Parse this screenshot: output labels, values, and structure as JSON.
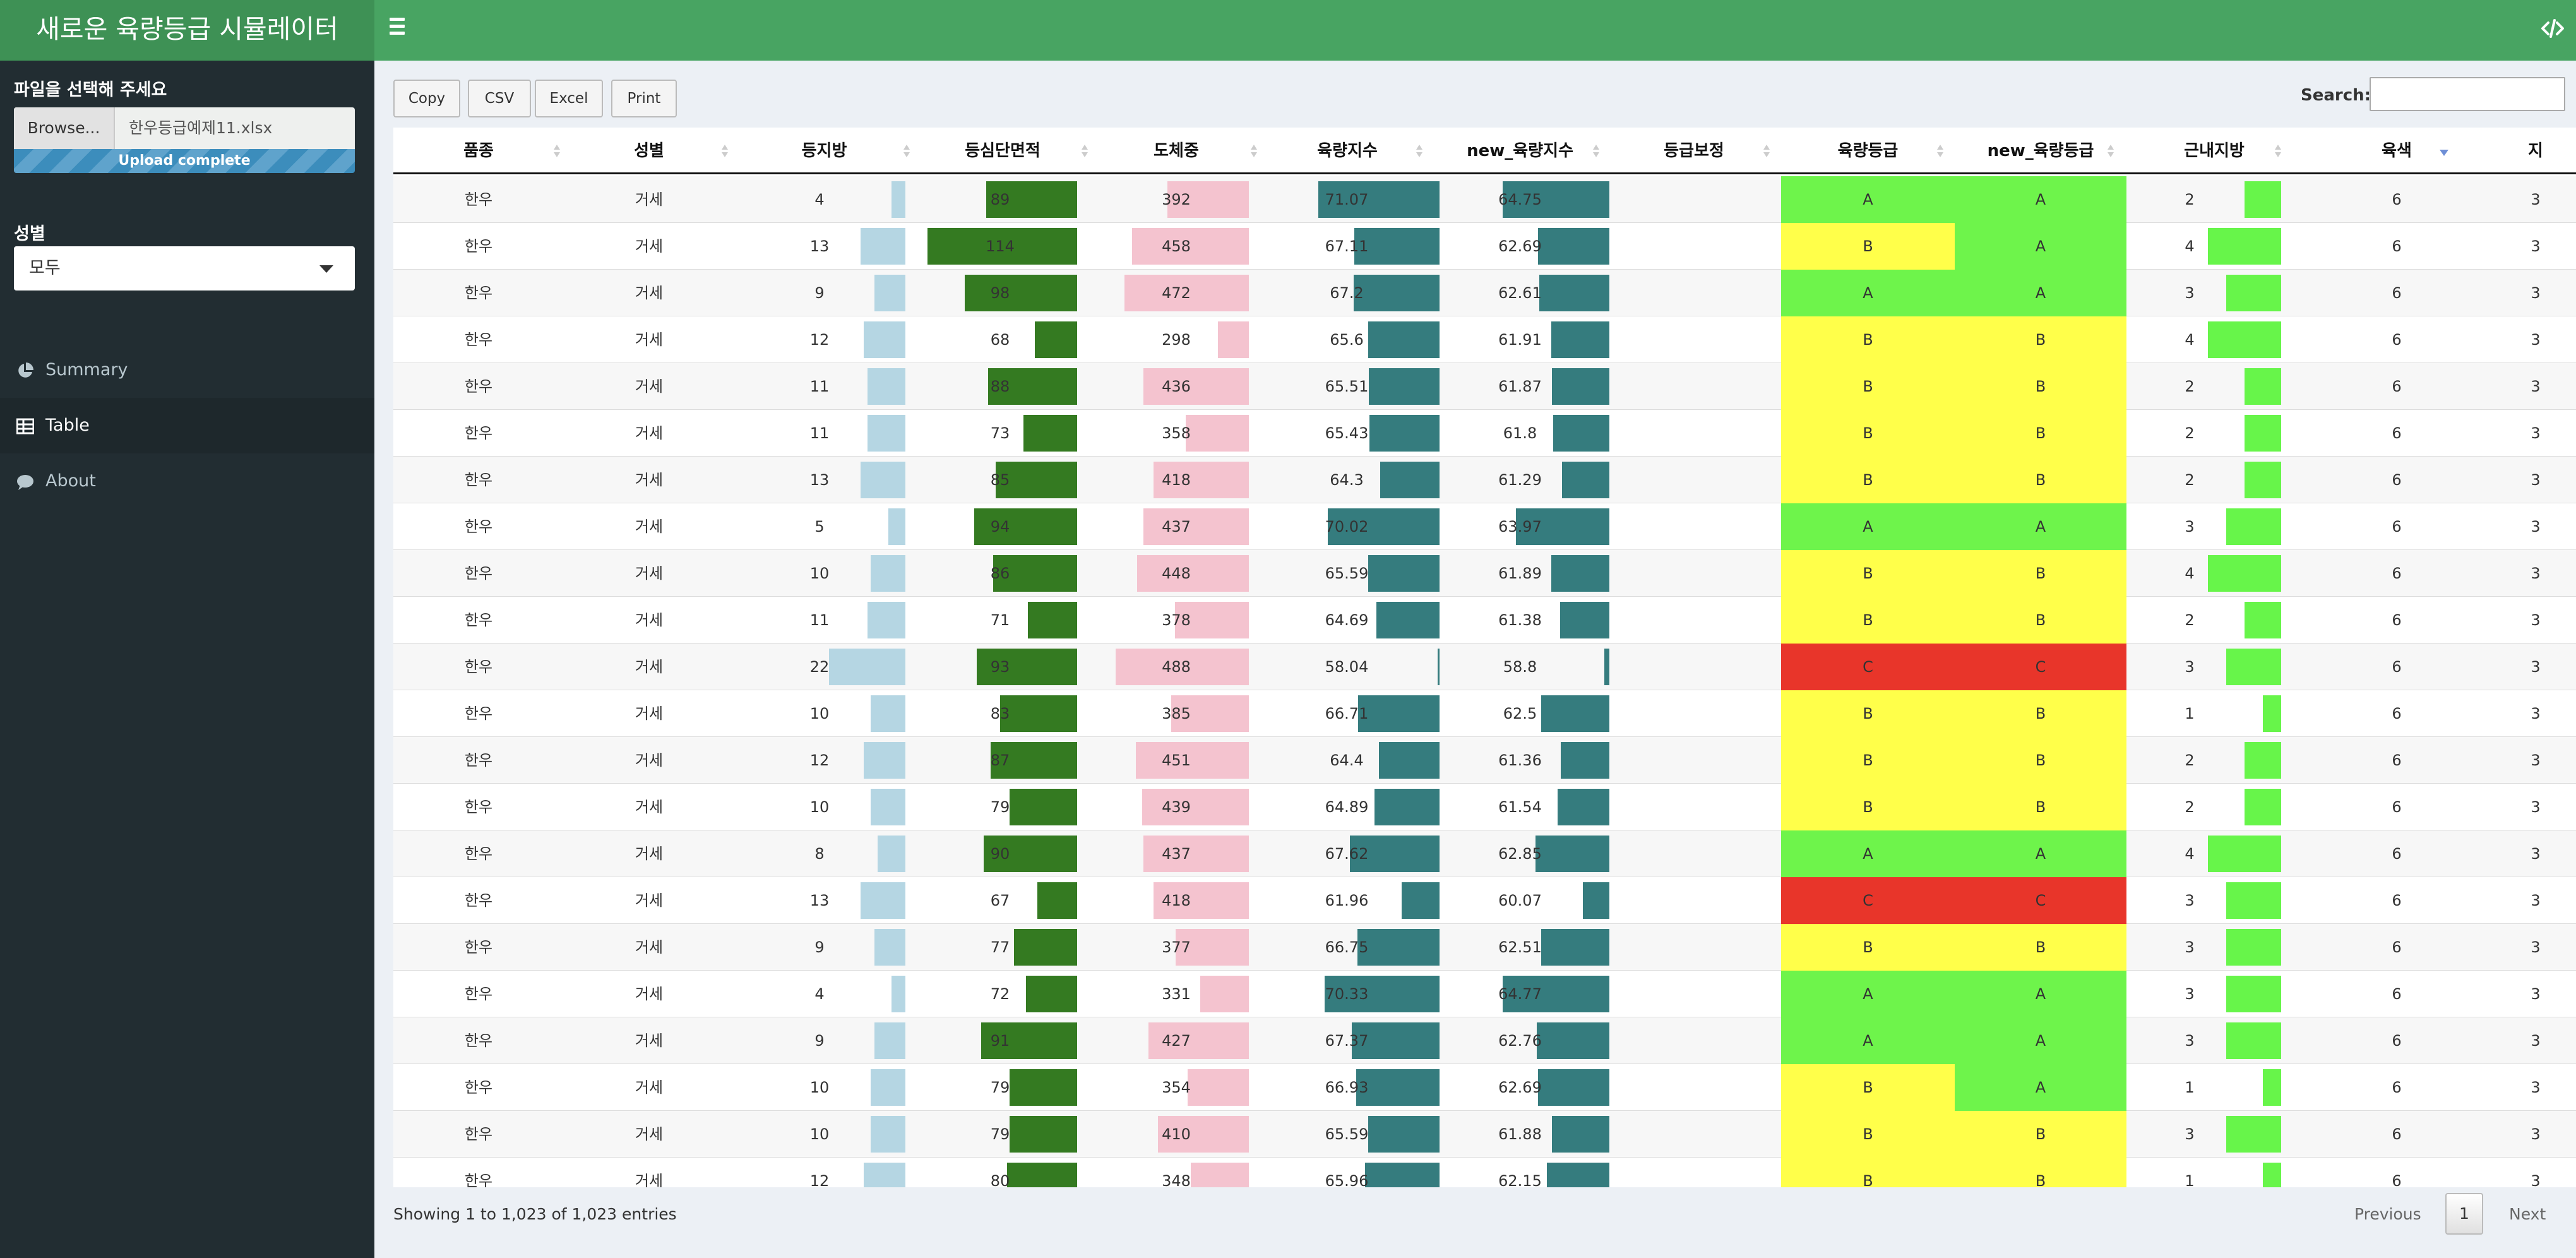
{
  "app": {
    "title": "새로운 육량등급 시뮬레이터"
  },
  "sidebar": {
    "upload_label": "파일을 선택해 주세요",
    "browse_label": "Browse...",
    "file_name": "한우등급예제11.xlsx",
    "upload_status": "Upload complete",
    "sex_label": "성별",
    "sex_value": "모두",
    "menu": [
      {
        "label": "Summary",
        "icon": "pie-chart-icon"
      },
      {
        "label": "Table",
        "icon": "table-icon"
      },
      {
        "label": "About",
        "icon": "comment-icon"
      }
    ]
  },
  "toolbar": {
    "copy": "Copy",
    "csv": "CSV",
    "excel": "Excel",
    "print": "Print",
    "search_label": "Search:",
    "search_value": ""
  },
  "table": {
    "columns": [
      "품종",
      "성별",
      "등지방",
      "등심단면적",
      "도체중",
      "육량지수",
      "new_육량지수",
      "등급보정",
      "육량등급",
      "new_육량등급",
      "근내지방",
      "육색",
      "지"
    ],
    "sorted_column": "육색",
    "rows": [
      [
        "한우",
        "거세",
        "4",
        "89",
        "392",
        "71.07",
        "64.75",
        "",
        "A",
        "A",
        "2",
        "6",
        "3"
      ],
      [
        "한우",
        "거세",
        "13",
        "114",
        "458",
        "67.11",
        "62.69",
        "",
        "B",
        "A",
        "4",
        "6",
        "3"
      ],
      [
        "한우",
        "거세",
        "9",
        "98",
        "472",
        "67.2",
        "62.61",
        "",
        "A",
        "A",
        "3",
        "6",
        "3"
      ],
      [
        "한우",
        "거세",
        "12",
        "68",
        "298",
        "65.6",
        "61.91",
        "",
        "B",
        "B",
        "4",
        "6",
        "3"
      ],
      [
        "한우",
        "거세",
        "11",
        "88",
        "436",
        "65.51",
        "61.87",
        "",
        "B",
        "B",
        "2",
        "6",
        "3"
      ],
      [
        "한우",
        "거세",
        "11",
        "73",
        "358",
        "65.43",
        "61.8",
        "",
        "B",
        "B",
        "2",
        "6",
        "3"
      ],
      [
        "한우",
        "거세",
        "13",
        "85",
        "418",
        "64.3",
        "61.29",
        "",
        "B",
        "B",
        "2",
        "6",
        "3"
      ],
      [
        "한우",
        "거세",
        "5",
        "94",
        "437",
        "70.02",
        "63.97",
        "",
        "A",
        "A",
        "3",
        "6",
        "3"
      ],
      [
        "한우",
        "거세",
        "10",
        "86",
        "448",
        "65.59",
        "61.89",
        "",
        "B",
        "B",
        "4",
        "6",
        "3"
      ],
      [
        "한우",
        "거세",
        "11",
        "71",
        "378",
        "64.69",
        "61.38",
        "",
        "B",
        "B",
        "2",
        "6",
        "3"
      ],
      [
        "한우",
        "거세",
        "22",
        "93",
        "488",
        "58.04",
        "58.8",
        "",
        "C",
        "C",
        "3",
        "6",
        "3"
      ],
      [
        "한우",
        "거세",
        "10",
        "83",
        "385",
        "66.71",
        "62.5",
        "",
        "B",
        "B",
        "1",
        "6",
        "3"
      ],
      [
        "한우",
        "거세",
        "12",
        "87",
        "451",
        "64.4",
        "61.36",
        "",
        "B",
        "B",
        "2",
        "6",
        "3"
      ],
      [
        "한우",
        "거세",
        "10",
        "79",
        "439",
        "64.89",
        "61.54",
        "",
        "B",
        "B",
        "2",
        "6",
        "3"
      ],
      [
        "한우",
        "거세",
        "8",
        "90",
        "437",
        "67.62",
        "62.85",
        "",
        "A",
        "A",
        "4",
        "6",
        "3"
      ],
      [
        "한우",
        "거세",
        "13",
        "67",
        "418",
        "61.96",
        "60.07",
        "",
        "C",
        "C",
        "3",
        "6",
        "3"
      ],
      [
        "한우",
        "거세",
        "9",
        "77",
        "377",
        "66.75",
        "62.51",
        "",
        "B",
        "B",
        "3",
        "6",
        "3"
      ],
      [
        "한우",
        "거세",
        "4",
        "72",
        "331",
        "70.33",
        "64.77",
        "",
        "A",
        "A",
        "3",
        "6",
        "3"
      ],
      [
        "한우",
        "거세",
        "9",
        "91",
        "427",
        "67.37",
        "62.76",
        "",
        "A",
        "A",
        "3",
        "6",
        "3"
      ],
      [
        "한우",
        "거세",
        "10",
        "79",
        "354",
        "66.93",
        "62.69",
        "",
        "B",
        "A",
        "1",
        "6",
        "3"
      ],
      [
        "한우",
        "거세",
        "10",
        "79",
        "410",
        "65.59",
        "61.88",
        "",
        "B",
        "B",
        "3",
        "6",
        "3"
      ],
      [
        "한우",
        "거세",
        "12",
        "80",
        "348",
        "65.96",
        "62.15",
        "",
        "B",
        "B",
        "1",
        "6",
        "3"
      ]
    ]
  },
  "colors": {
    "grade_A": "#6ef44b",
    "grade_B": "#ffff4a",
    "grade_C": "#e8352a",
    "fat_bar": "#b5d6e3",
    "area_bar": "#347a21",
    "weight_bar": "#f4c3cf",
    "index_bar": "#357c7e",
    "marbling_bar": "#67f54a"
  },
  "footer": {
    "info": "Showing 1 to 1,023 of 1,023 entries",
    "previous": "Previous",
    "page": "1",
    "next": "Next"
  }
}
